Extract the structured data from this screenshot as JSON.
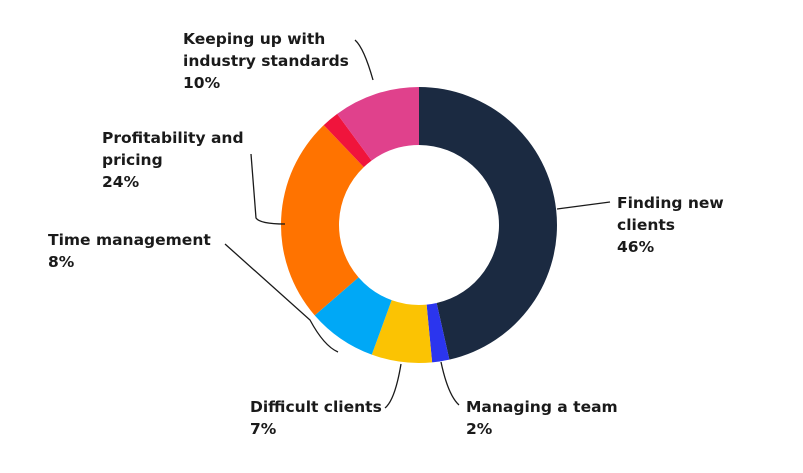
{
  "chart_data": {
    "type": "pie",
    "variant": "donut",
    "title": "",
    "slices": [
      {
        "name": "Finding new clients",
        "label_lines": [
          "Finding new",
          "clients"
        ],
        "value_text": "46%",
        "value": 46,
        "color": "#1b2a41"
      },
      {
        "name": "Managing a team",
        "label_lines": [
          "Managing a team"
        ],
        "value_text": "2%",
        "value": 2,
        "color": "#2b35ee"
      },
      {
        "name": "Difficult clients",
        "label_lines": [
          "Difficult clients"
        ],
        "value_text": "7%",
        "value": 7,
        "color": "#fbc303"
      },
      {
        "name": "Time management",
        "label_lines": [
          "Time management"
        ],
        "value_text": "8%",
        "value": 8,
        "color": "#00a8f6"
      },
      {
        "name": "Profitability and pricing",
        "label_lines": [
          "Profitability and",
          "pricing"
        ],
        "value_text": "24%",
        "value": 24,
        "color": "#ff7300"
      },
      {
        "name": "Red segment",
        "label_lines": [],
        "value_text": "",
        "value": 2,
        "color": "#f0143c"
      },
      {
        "name": "Keeping up with industry standards",
        "label_lines": [
          "Keeping up with",
          "industry standards"
        ],
        "value_text": "10%",
        "value": 10,
        "color": "#e0418c"
      }
    ]
  }
}
